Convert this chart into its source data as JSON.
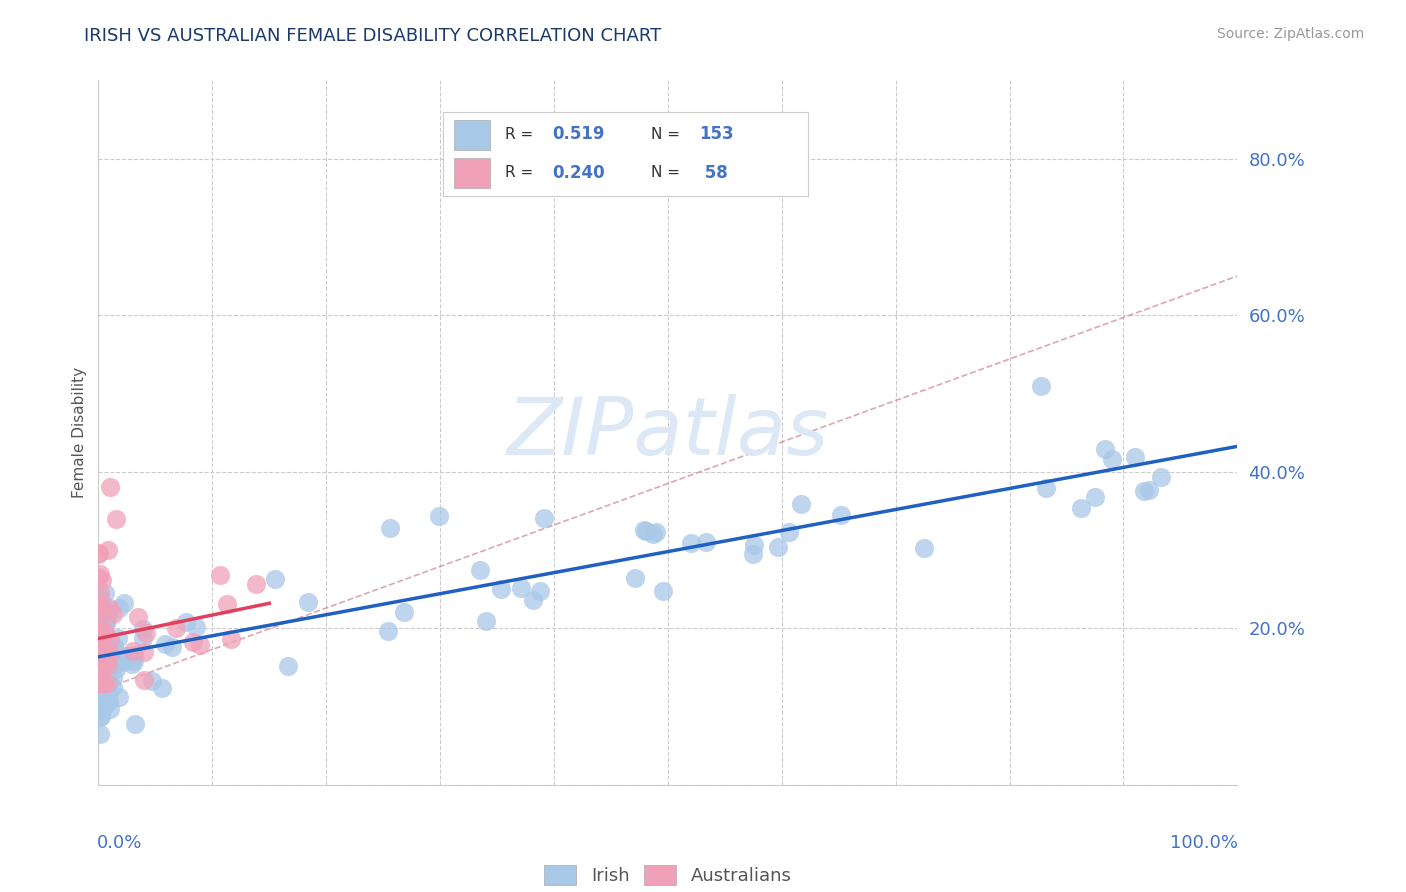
{
  "title": "IRISH VS AUSTRALIAN FEMALE DISABILITY CORRELATION CHART",
  "source": "Source: ZipAtlas.com",
  "ylabel": "Female Disability",
  "irish_R": "0.519",
  "irish_N": "153",
  "aus_R": "0.240",
  "aus_N": "58",
  "irish_color": "#a8c8e8",
  "aus_color": "#f0a0b8",
  "irish_line_color": "#2060c0",
  "aus_line_color": "#e04060",
  "background_color": "#ffffff",
  "grid_color": "#cccccc",
  "title_color": "#1a3a6b",
  "watermark_color": "#dce8f5",
  "watermark_text": "ZIPatlas",
  "tick_label_color": "#4472c4",
  "ylim": [
    0.0,
    0.9
  ],
  "xlim": [
    0.0,
    1.0
  ],
  "ytick_positions": [
    0.2,
    0.4,
    0.6,
    0.8
  ],
  "ytick_labels": [
    "20.0%",
    "40.0%",
    "60.0%",
    "80.0%"
  ]
}
